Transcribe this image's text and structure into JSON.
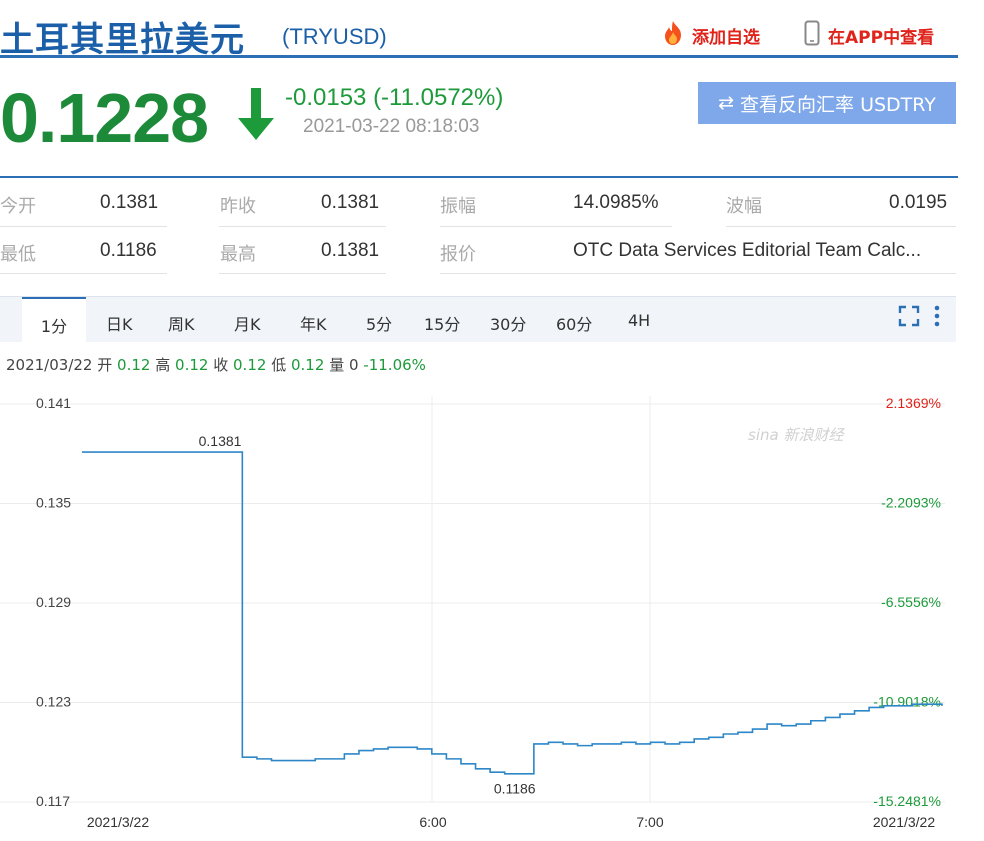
{
  "header": {
    "title_cn": "土耳其里拉美元",
    "code": "(TRYUSD)",
    "add_favorite": "添加自选",
    "view_in_app": "在APP中查看"
  },
  "quote": {
    "price": "0.1228",
    "change": "-0.0153 (-11.0572%)",
    "time": "2021-03-22 08:18:03",
    "reverse_button": "查看反向汇率 USDTRY"
  },
  "stats": {
    "row1": [
      {
        "label": "今开",
        "value": "0.1381"
      },
      {
        "label": "昨收",
        "value": "0.1381"
      },
      {
        "label": "振幅",
        "value": "14.0985%"
      },
      {
        "label": "波幅",
        "value": "0.0195"
      }
    ],
    "row2": [
      {
        "label": "最低",
        "value": "0.1186"
      },
      {
        "label": "最高",
        "value": "0.1381"
      },
      {
        "label": "报价",
        "value": "OTC Data Services Editorial Team Calc..."
      }
    ]
  },
  "tabs": [
    "1分",
    "日K",
    "周K",
    "月K",
    "年K",
    "5分",
    "15分",
    "30分",
    "60分",
    "4H"
  ],
  "ohlc": {
    "date": "2021/03/22",
    "open_label": "开",
    "open": "0.12",
    "high_label": "高",
    "high": "0.12",
    "close_label": "收",
    "close": "0.12",
    "low_label": "低",
    "low": "0.12",
    "vol_label": "量",
    "vol": "0",
    "pct": "-11.06%"
  },
  "watermark": "sina 新浪财经",
  "colors": {
    "accent": "#2c6fb5",
    "down": "#1d8a3a",
    "up": "#e0231a",
    "button": "#7fa8ea",
    "line": "#2d86c8"
  },
  "chart_data": {
    "type": "line",
    "y_ticks": [
      "0.141",
      "0.135",
      "0.129",
      "0.123",
      "0.117"
    ],
    "y_range": [
      0.117,
      0.141
    ],
    "pct_ticks": [
      "2.1369%",
      "-2.2093%",
      "-6.5556%",
      "-10.9018%",
      "-15.2481%"
    ],
    "x_ticks": [
      "2021/3/22",
      "6:00",
      "7:00",
      "2021/3/22"
    ],
    "annotations": [
      {
        "text": "0.1381",
        "value": 0.1381
      },
      {
        "text": "0.1186",
        "value": 0.1186
      }
    ],
    "series": [
      {
        "values": [
          0.1381,
          0.1381,
          0.1381,
          0.1381,
          0.1381,
          0.1381,
          0.1381,
          0.1381,
          0.1381,
          0.1381,
          0.1381,
          0.1197,
          0.1196,
          0.1195,
          0.1195,
          0.1195,
          0.1196,
          0.1196,
          0.1199,
          0.1201,
          0.1202,
          0.1203,
          0.1203,
          0.1202,
          0.1199,
          0.1196,
          0.1193,
          0.119,
          0.1188,
          0.1187,
          0.1187,
          0.1205,
          0.1206,
          0.1205,
          0.1204,
          0.1205,
          0.1205,
          0.1206,
          0.1205,
          0.1206,
          0.1205,
          0.1206,
          0.1208,
          0.1209,
          0.1211,
          0.1212,
          0.1214,
          0.1217,
          0.1216,
          0.1217,
          0.1219,
          0.1221,
          0.1223,
          0.1225,
          0.1227,
          0.1228,
          0.1228,
          0.1229,
          0.1229,
          0.1228
        ]
      }
    ]
  }
}
